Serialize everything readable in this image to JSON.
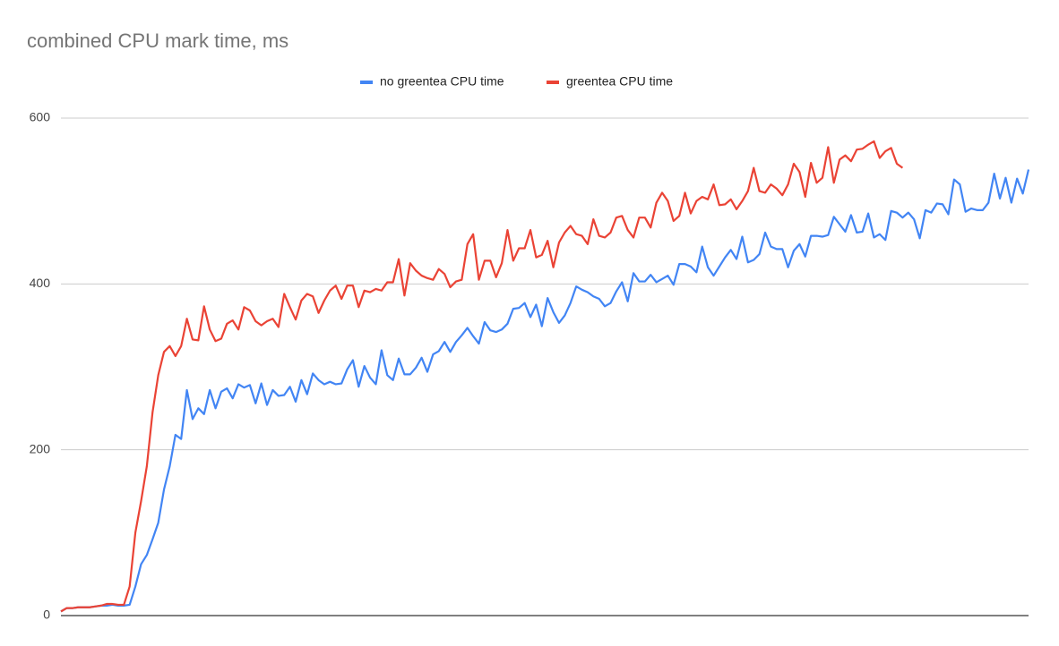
{
  "chart_data": {
    "type": "line",
    "title": "combined CPU mark time, ms",
    "categories": [
      null,
      null,
      null,
      null,
      null,
      null,
      null,
      null,
      null,
      null,
      null,
      null,
      null,
      null,
      null,
      null,
      null,
      null,
      null,
      null,
      null,
      null,
      null,
      null,
      null,
      null,
      null,
      null,
      null,
      null,
      null,
      null,
      null,
      null,
      null,
      null,
      null,
      null,
      null,
      null,
      null,
      null,
      null,
      null,
      null,
      null,
      null,
      null,
      null,
      null,
      null,
      null,
      null,
      null,
      null,
      null,
      null,
      null,
      null,
      null,
      null,
      null,
      null,
      null,
      null,
      null,
      null,
      null,
      null,
      null,
      null,
      null,
      null,
      null,
      null,
      null,
      null,
      null,
      null,
      null,
      null,
      null,
      null,
      null,
      null,
      null,
      null,
      null,
      null,
      null,
      null,
      null,
      null,
      null,
      null,
      null,
      null,
      null,
      null,
      null,
      null,
      null,
      null,
      null,
      null,
      null,
      null,
      null,
      null,
      null,
      null,
      null,
      null,
      null,
      null,
      null,
      null,
      null,
      null,
      null,
      null,
      null,
      null,
      null,
      null,
      null,
      null,
      null,
      null,
      null,
      null,
      null,
      null,
      null,
      null,
      null,
      null,
      null,
      null,
      null,
      null,
      null,
      null,
      null,
      null,
      null,
      null,
      null,
      null,
      null,
      null,
      null,
      null,
      null,
      null,
      null,
      null,
      null,
      null,
      null,
      null,
      null,
      null,
      null,
      null,
      null,
      null,
      null,
      null,
      null
    ],
    "series": [
      {
        "name": "no greentea CPU time",
        "color": "#4285f4",
        "values": [
          5,
          9,
          9,
          10,
          10,
          10,
          11,
          12,
          12,
          13,
          12,
          12,
          13,
          35,
          62,
          73,
          92,
          112,
          152,
          180,
          218,
          213,
          272,
          237,
          250,
          243,
          272,
          250,
          270,
          274,
          262,
          279,
          275,
          278,
          256,
          280,
          254,
          272,
          265,
          266,
          276,
          258,
          284,
          267,
          292,
          284,
          279,
          282,
          279,
          280,
          297,
          308,
          276,
          301,
          287,
          279,
          320,
          290,
          284,
          310,
          291,
          291,
          299,
          311,
          294,
          315,
          319,
          330,
          318,
          330,
          338,
          347,
          337,
          328,
          354,
          344,
          342,
          345,
          352,
          370,
          371,
          377,
          360,
          375,
          349,
          383,
          366,
          353,
          362,
          377,
          397,
          393,
          390,
          385,
          382,
          373,
          377,
          391,
          402,
          379,
          413,
          403,
          403,
          411,
          402,
          406,
          410,
          399,
          424,
          424,
          421,
          414,
          445,
          420,
          410,
          421,
          432,
          441,
          430,
          457,
          426,
          429,
          436,
          462,
          445,
          442,
          442,
          420,
          440,
          448,
          433,
          458,
          458,
          457,
          459,
          481,
          472,
          463,
          483,
          462,
          463,
          485,
          456,
          460,
          453,
          488,
          486,
          480,
          486,
          478,
          455,
          489,
          486,
          497,
          496,
          484,
          526,
          520,
          487,
          491,
          489,
          489,
          498,
          533,
          503,
          528,
          498,
          527,
          509,
          538
        ]
      },
      {
        "name": "greentea CPU time",
        "color": "#ea4335",
        "values": [
          5,
          9,
          9,
          10,
          10,
          10,
          11,
          12,
          14,
          14,
          13,
          13,
          35,
          100,
          138,
          180,
          245,
          290,
          318,
          325,
          313,
          325,
          358,
          333,
          332,
          373,
          345,
          331,
          334,
          352,
          356,
          345,
          372,
          368,
          355,
          350,
          355,
          358,
          348,
          388,
          372,
          357,
          380,
          388,
          385,
          365,
          380,
          392,
          398,
          382,
          398,
          398,
          372,
          392,
          390,
          394,
          392,
          402,
          402,
          430,
          386,
          425,
          416,
          410,
          407,
          405,
          418,
          412,
          396,
          403,
          405,
          448,
          460,
          405,
          428,
          428,
          408,
          425,
          465,
          428,
          443,
          443,
          465,
          432,
          435,
          452,
          420,
          450,
          462,
          470,
          460,
          458,
          448,
          478,
          458,
          456,
          462,
          480,
          482,
          465,
          456,
          480,
          480,
          468,
          498,
          510,
          500,
          476,
          482,
          510,
          485,
          500,
          505,
          502,
          520,
          495,
          496,
          502,
          490,
          500,
          512,
          540,
          512,
          510,
          520,
          515,
          507,
          520,
          545,
          535,
          505,
          546,
          522,
          528,
          565,
          522,
          550,
          555,
          548,
          562,
          563,
          568,
          572,
          552,
          560,
          564,
          545,
          540,
          null,
          null,
          null,
          null,
          null,
          null,
          null,
          null,
          null,
          null,
          null,
          null,
          null,
          null,
          null,
          null,
          null,
          null,
          null,
          null,
          null,
          null
        ]
      }
    ],
    "ylim": [
      0,
      600
    ],
    "yticks": [
      0,
      200,
      400,
      600
    ],
    "grid": true
  }
}
